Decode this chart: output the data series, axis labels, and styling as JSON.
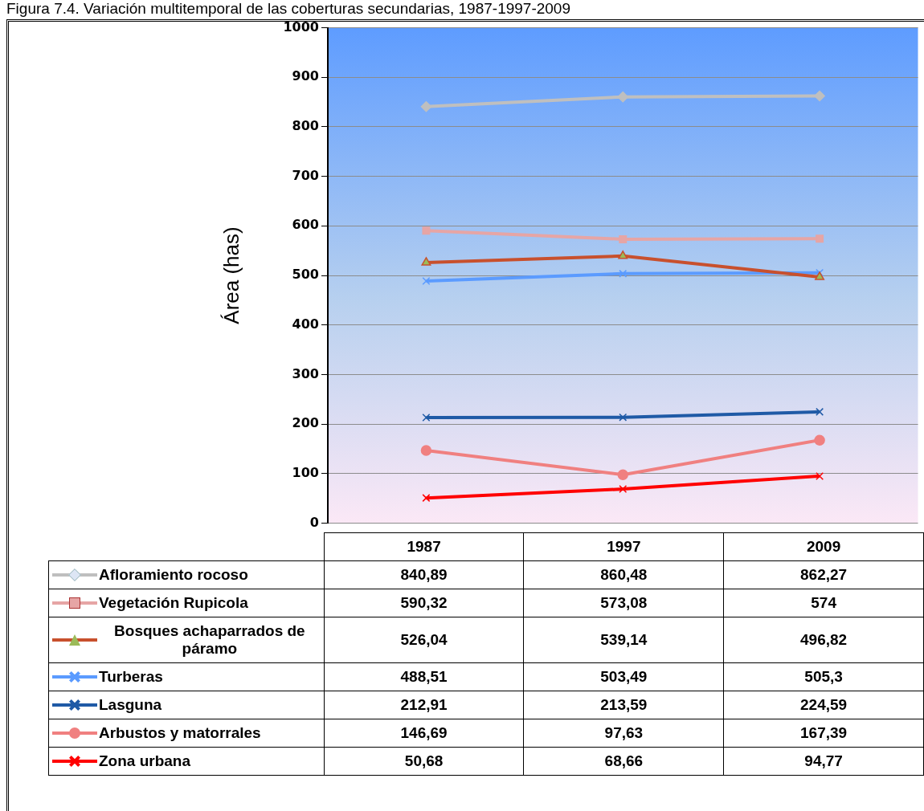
{
  "chart_data": {
    "type": "line",
    "title": "Figura 7.4. Variación multitemporal de las coberturas secundarias, 1987-1997-2009",
    "ylabel": "Área (has)",
    "categories": [
      "1987",
      "1997",
      "2009"
    ],
    "ylim": [
      0,
      1000
    ],
    "yticks": [
      0,
      100,
      200,
      300,
      400,
      500,
      600,
      700,
      800,
      900,
      1000
    ],
    "grid": "y",
    "legend": "bottom",
    "data_labels": true,
    "line_style": "solid",
    "series": [
      {
        "name": "Afloramiento rocoso",
        "color": "#bfbfbf",
        "marker": "diamond",
        "values": [
          840.89,
          860.48,
          862.27
        ],
        "value_labels": [
          "840,89",
          "860,48",
          "862,27"
        ]
      },
      {
        "name": "Vegetación Rupicola",
        "color": "#e6a5a5",
        "marker": "square",
        "values": [
          590.32,
          573.08,
          574
        ],
        "value_labels": [
          "590,32",
          "573,08",
          "574"
        ]
      },
      {
        "name": "Bosques achaparrados de páramo",
        "color": "#c8502d",
        "marker": "triangle",
        "values": [
          526.04,
          539.14,
          496.82
        ],
        "value_labels": [
          "526,04",
          "539,14",
          "496,82"
        ]
      },
      {
        "name": "Turberas",
        "color": "#5b9bff",
        "marker": "cross",
        "values": [
          488.51,
          503.49,
          505.3
        ],
        "value_labels": [
          "488,51",
          "503,49",
          "505,3"
        ]
      },
      {
        "name": "Lasguna",
        "color": "#1f5aa6",
        "marker": "cross",
        "values": [
          212.91,
          213.59,
          224.59
        ],
        "value_labels": [
          "212,91",
          "213,59",
          "224,59"
        ]
      },
      {
        "name": "Arbustos y matorrales",
        "color": "#f08080",
        "marker": "circle",
        "values": [
          146.69,
          97.63,
          167.39
        ],
        "value_labels": [
          "146,69",
          "97,63",
          "167,39"
        ]
      },
      {
        "name": "Zona urbana",
        "color": "#ff0000",
        "marker": "cross",
        "values": [
          50.68,
          68.66,
          94.77
        ],
        "value_labels": [
          "50,68",
          "68,66",
          "94,77"
        ]
      }
    ]
  }
}
